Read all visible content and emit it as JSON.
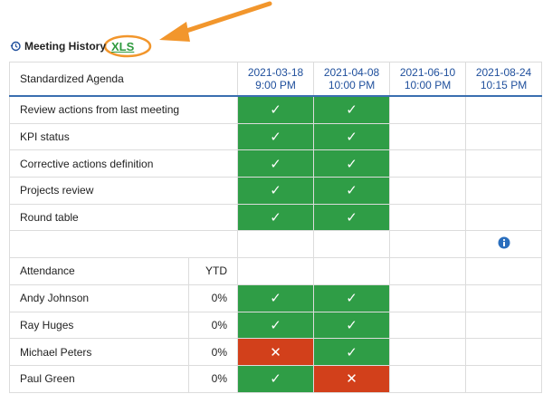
{
  "header": {
    "title": "Meeting History",
    "export": "XLS"
  },
  "table": {
    "agenda_header": "Standardized Agenda",
    "dates": [
      {
        "date": "2021-03-18",
        "time": "9:00 PM"
      },
      {
        "date": "2021-04-08",
        "time": "10:00 PM"
      },
      {
        "date": "2021-06-10",
        "time": "10:00 PM"
      },
      {
        "date": "2021-08-24",
        "time": "10:15 PM"
      }
    ],
    "agenda": [
      {
        "label": "Review actions from last meeting",
        "marks": [
          {
            "glyph": "✓",
            "color": "#2f9d46"
          },
          {
            "glyph": "✓",
            "color": "#2f9d46"
          },
          null,
          null
        ]
      },
      {
        "label": "KPI status",
        "marks": [
          {
            "glyph": "✓",
            "color": "#2f9d46"
          },
          {
            "glyph": "✓",
            "color": "#2f9d46"
          },
          null,
          null
        ]
      },
      {
        "label": "Corrective actions definition",
        "marks": [
          {
            "glyph": "✓",
            "color": "#2f9d46"
          },
          {
            "glyph": "✓",
            "color": "#2f9d46"
          },
          null,
          null
        ]
      },
      {
        "label": "Projects review",
        "marks": [
          {
            "glyph": "✓",
            "color": "#2f9d46"
          },
          {
            "glyph": "✓",
            "color": "#2f9d46"
          },
          null,
          null
        ]
      },
      {
        "label": "Round table",
        "marks": [
          {
            "glyph": "✓",
            "color": "#2f9d46"
          },
          {
            "glyph": "✓",
            "color": "#2f9d46"
          },
          null,
          null
        ]
      }
    ],
    "attendance_header": "Attendance",
    "ytd_header": "YTD",
    "attendance": [
      {
        "name": "Andy Johnson",
        "ytd": "0%",
        "marks": [
          {
            "glyph": "✓",
            "color": "#2f9d46"
          },
          {
            "glyph": "✓",
            "color": "#2f9d46"
          },
          null,
          null
        ]
      },
      {
        "name": "Ray Huges",
        "ytd": "0%",
        "marks": [
          {
            "glyph": "✓",
            "color": "#2f9d46"
          },
          {
            "glyph": "✓",
            "color": "#2f9d46"
          },
          null,
          null
        ]
      },
      {
        "name": "Michael Peters",
        "ytd": "0%",
        "marks": [
          {
            "glyph": "✕",
            "color": "#d2401b"
          },
          {
            "glyph": "✓",
            "color": "#2f9d46"
          },
          null,
          null
        ]
      },
      {
        "name": "Paul Green",
        "ytd": "0%",
        "marks": [
          {
            "glyph": "✓",
            "color": "#2f9d46"
          },
          {
            "glyph": "✕",
            "color": "#d2401b"
          },
          null,
          null
        ]
      }
    ]
  }
}
